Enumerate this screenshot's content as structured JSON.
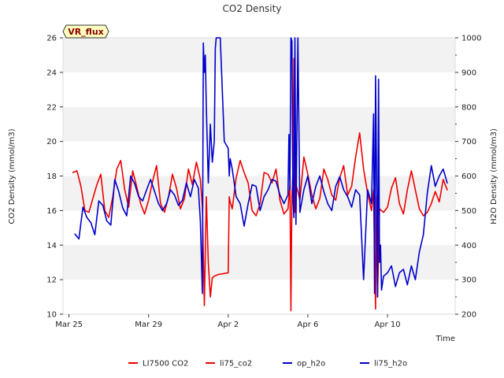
{
  "chart_data": {
    "type": "line",
    "title": "CO2 Density",
    "site_label": "VR_flux",
    "xlabel": "Time",
    "ylabel": "CO2 Density (mmol/m3)",
    "y2label": "H2O Density (mmol/m3)",
    "xlim": [
      -0.3,
      19.4
    ],
    "ylim": [
      10,
      26
    ],
    "y2lim": [
      200,
      1000
    ],
    "x_ticks": [
      0,
      4,
      8,
      12,
      16
    ],
    "x_tick_labels": [
      "Mar 25",
      "Mar 29",
      "Apr 2",
      "Apr 6",
      "Apr 10"
    ],
    "y_ticks": [
      10,
      12,
      14,
      16,
      18,
      20,
      22,
      24,
      26
    ],
    "y2_ticks": [
      200,
      300,
      400,
      500,
      600,
      700,
      800,
      900,
      1000
    ],
    "band_color": "#f2f2f2",
    "legend_position": "bottom-center",
    "series": [
      {
        "name": "LI7500 CO2",
        "axis": "left",
        "color": "#ee0000",
        "x": [],
        "y": []
      },
      {
        "name": "li75_co2",
        "axis": "left",
        "color": "#ee0000",
        "x": [
          0.2,
          0.4,
          0.6,
          0.8,
          1.0,
          1.2,
          1.4,
          1.6,
          1.8,
          2.0,
          2.2,
          2.4,
          2.6,
          2.8,
          3.0,
          3.2,
          3.4,
          3.6,
          3.8,
          4.0,
          4.2,
          4.4,
          4.6,
          4.8,
          5.0,
          5.2,
          5.4,
          5.6,
          5.8,
          6.0,
          6.2,
          6.4,
          6.6,
          6.7,
          6.8,
          6.9,
          7.0,
          7.1,
          7.2,
          7.3,
          7.5,
          8.0,
          8.05,
          8.1,
          8.2,
          8.4,
          8.6,
          8.8,
          9.0,
          9.2,
          9.4,
          9.6,
          9.8,
          10.0,
          10.2,
          10.4,
          10.6,
          10.8,
          11.0,
          11.1,
          11.15,
          11.2,
          11.25,
          11.3,
          11.35,
          11.4,
          11.5,
          11.6,
          11.8,
          12.0,
          12.2,
          12.4,
          12.6,
          12.8,
          13.0,
          13.2,
          13.4,
          13.6,
          13.8,
          14.0,
          14.2,
          14.4,
          14.6,
          14.8,
          15.0,
          15.2,
          15.3,
          15.4,
          15.45,
          15.5,
          15.6,
          15.8,
          16.0,
          16.2,
          16.4,
          16.6,
          16.8,
          17.0,
          17.2,
          17.4,
          17.6,
          17.8,
          18.0,
          18.2,
          18.4,
          18.6,
          18.8,
          19.0
        ],
        "y": [
          18.2,
          18.3,
          17.4,
          16.0,
          15.9,
          16.7,
          17.5,
          18.1,
          16.0,
          15.6,
          16.8,
          18.4,
          18.9,
          17.2,
          16.2,
          18.3,
          17.4,
          16.4,
          15.8,
          16.6,
          17.7,
          18.6,
          16.4,
          15.9,
          16.8,
          18.1,
          17.3,
          16.1,
          16.7,
          18.4,
          17.5,
          18.8,
          17.8,
          16.2,
          10.5,
          16.8,
          13.0,
          11.0,
          12.1,
          12.2,
          12.3,
          12.4,
          16.8,
          16.5,
          16.1,
          17.9,
          18.9,
          18.2,
          17.6,
          16.0,
          15.7,
          16.4,
          18.2,
          18.1,
          17.6,
          18.4,
          16.6,
          15.8,
          16.1,
          17.5,
          10.2,
          16.8,
          18.2,
          24.8,
          15.9,
          17.5,
          17.1,
          16.6,
          19.1,
          18.1,
          16.9,
          16.1,
          16.7,
          18.4,
          17.8,
          16.9,
          16.6,
          17.9,
          18.6,
          16.9,
          17.4,
          19.1,
          20.5,
          18.4,
          17.0,
          16.0,
          17.2,
          10.3,
          16.8,
          11.0,
          16.1,
          15.9,
          16.2,
          17.3,
          17.9,
          16.4,
          15.8,
          17.2,
          18.3,
          17.2,
          16.1,
          15.7,
          15.9,
          16.4,
          17.1,
          16.5,
          17.8,
          17.2
        ]
      },
      {
        "name": "op_h2o",
        "axis": "right",
        "color": "#0000cc",
        "x": [],
        "y": []
      },
      {
        "name": "li75_h2o",
        "axis": "right",
        "color": "#0000cc",
        "x": [
          0.3,
          0.5,
          0.7,
          0.9,
          1.1,
          1.3,
          1.5,
          1.7,
          1.9,
          2.1,
          2.3,
          2.5,
          2.7,
          2.9,
          3.1,
          3.3,
          3.5,
          3.7,
          3.9,
          4.1,
          4.3,
          4.5,
          4.7,
          4.9,
          5.1,
          5.3,
          5.5,
          5.7,
          5.9,
          6.1,
          6.3,
          6.5,
          6.6,
          6.7,
          6.75,
          6.8,
          6.85,
          6.9,
          7.0,
          7.1,
          7.2,
          7.3,
          7.35,
          7.4,
          7.6,
          7.8,
          8.0,
          8.05,
          8.1,
          8.2,
          8.4,
          8.6,
          8.8,
          9.0,
          9.2,
          9.4,
          9.6,
          9.8,
          10.0,
          10.2,
          10.4,
          10.6,
          10.8,
          11.0,
          11.05,
          11.1,
          11.15,
          11.2,
          11.25,
          11.3,
          11.35,
          11.4,
          11.5,
          11.6,
          11.8,
          12.0,
          12.2,
          12.4,
          12.6,
          12.8,
          13.0,
          13.2,
          13.4,
          13.6,
          13.8,
          14.0,
          14.2,
          14.4,
          14.6,
          14.8,
          15.0,
          15.2,
          15.3,
          15.35,
          15.4,
          15.45,
          15.5,
          15.55,
          15.6,
          15.65,
          15.7,
          15.8,
          16.0,
          16.2,
          16.4,
          16.6,
          16.8,
          17.0,
          17.2,
          17.4,
          17.6,
          17.8,
          18.0,
          18.2,
          18.4,
          18.6,
          18.8,
          19.0
        ],
        "y": [
          432,
          418,
          510,
          480,
          465,
          430,
          528,
          515,
          470,
          458,
          590,
          555,
          508,
          485,
          600,
          578,
          540,
          528,
          560,
          590,
          555,
          520,
          500,
          520,
          560,
          545,
          515,
          530,
          580,
          540,
          590,
          565,
          470,
          260,
          985,
          900,
          950,
          800,
          580,
          750,
          640,
          700,
          970,
          1000,
          1000,
          700,
          680,
          600,
          650,
          620,
          540,
          520,
          455,
          520,
          575,
          570,
          500,
          540,
          560,
          590,
          585,
          545,
          520,
          545,
          720,
          560,
          1000,
          990,
          540,
          480,
          1000,
          460,
          1000,
          495,
          560,
          600,
          520,
          570,
          600,
          555,
          520,
          500,
          570,
          598,
          560,
          540,
          510,
          560,
          545,
          300,
          560,
          520,
          780,
          260,
          890,
          620,
          250,
          880,
          350,
          400,
          270,
          310,
          320,
          340,
          280,
          320,
          330,
          285,
          340,
          300,
          380,
          430,
          550,
          630,
          570,
          600,
          620,
          580
        ]
      }
    ]
  }
}
